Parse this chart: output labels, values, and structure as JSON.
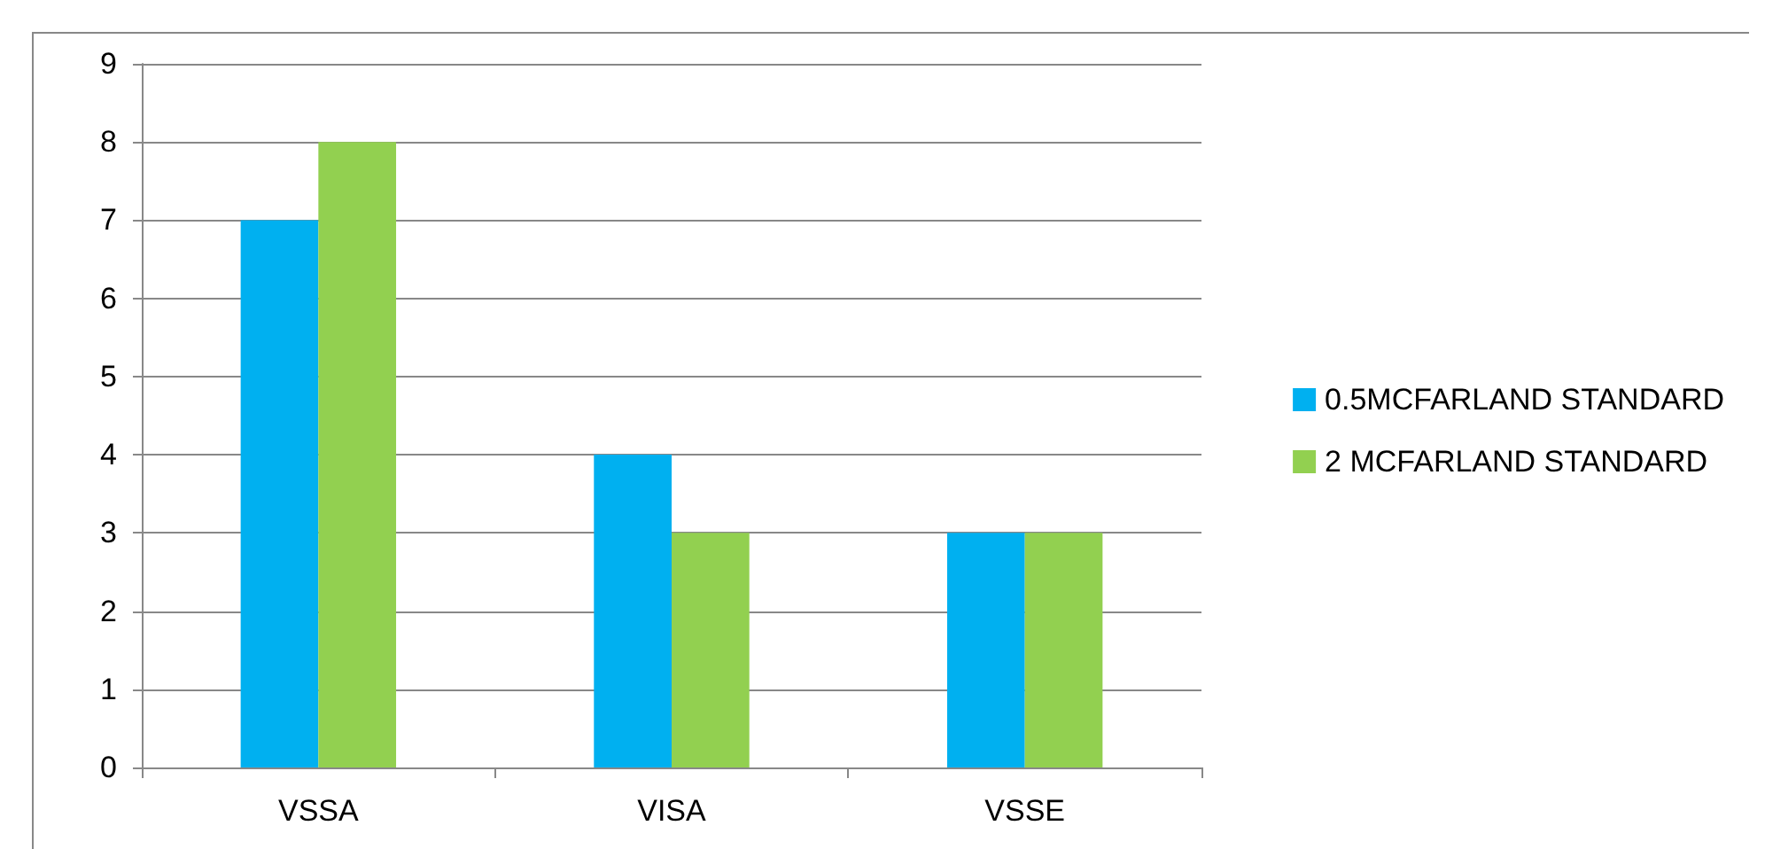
{
  "chart_data": {
    "type": "bar",
    "categories": [
      "VSSA",
      "VISA",
      "VSSE"
    ],
    "series": [
      {
        "name": "0.5MCFARLAND STANDARD",
        "color": "#00b0f0",
        "values": [
          7,
          4,
          3
        ]
      },
      {
        "name": "2 MCFARLAND STANDARD",
        "color": "#92d050",
        "values": [
          8,
          3,
          3
        ]
      }
    ],
    "ylim": [
      0,
      9
    ],
    "yticks": [
      0,
      1,
      2,
      3,
      4,
      5,
      6,
      7,
      8,
      9
    ],
    "grid": "y",
    "legend": "right"
  }
}
